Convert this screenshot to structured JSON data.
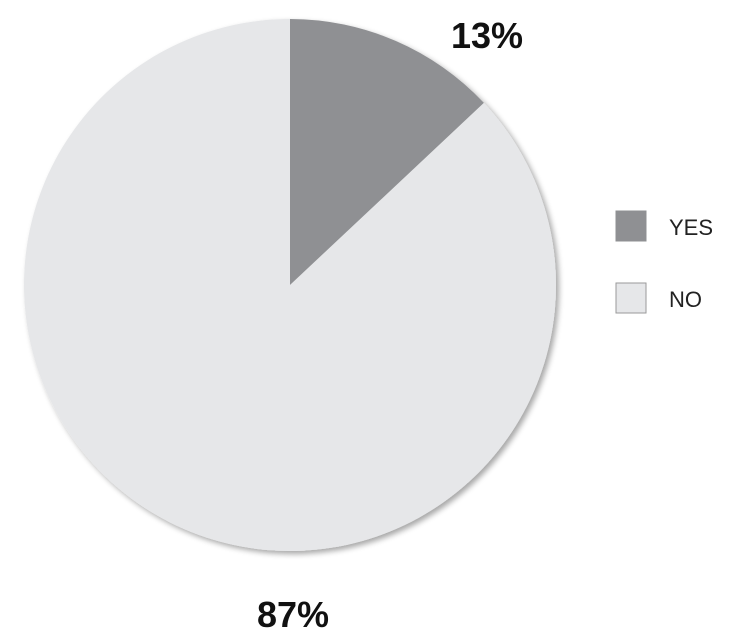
{
  "chart_data": {
    "type": "pie",
    "categories": [
      "YES",
      "NO"
    ],
    "values": [
      13,
      87
    ],
    "colors": [
      "#8f9093",
      "#e6e7e9"
    ],
    "data_labels": [
      "13%",
      "87%"
    ],
    "start_angle_deg": 0,
    "direction": "clockwise",
    "legend": {
      "placement": "right",
      "entries": [
        {
          "label": "YES",
          "color": "#8f9093"
        },
        {
          "label": "NO",
          "color": "#e6e7e9"
        }
      ]
    }
  }
}
